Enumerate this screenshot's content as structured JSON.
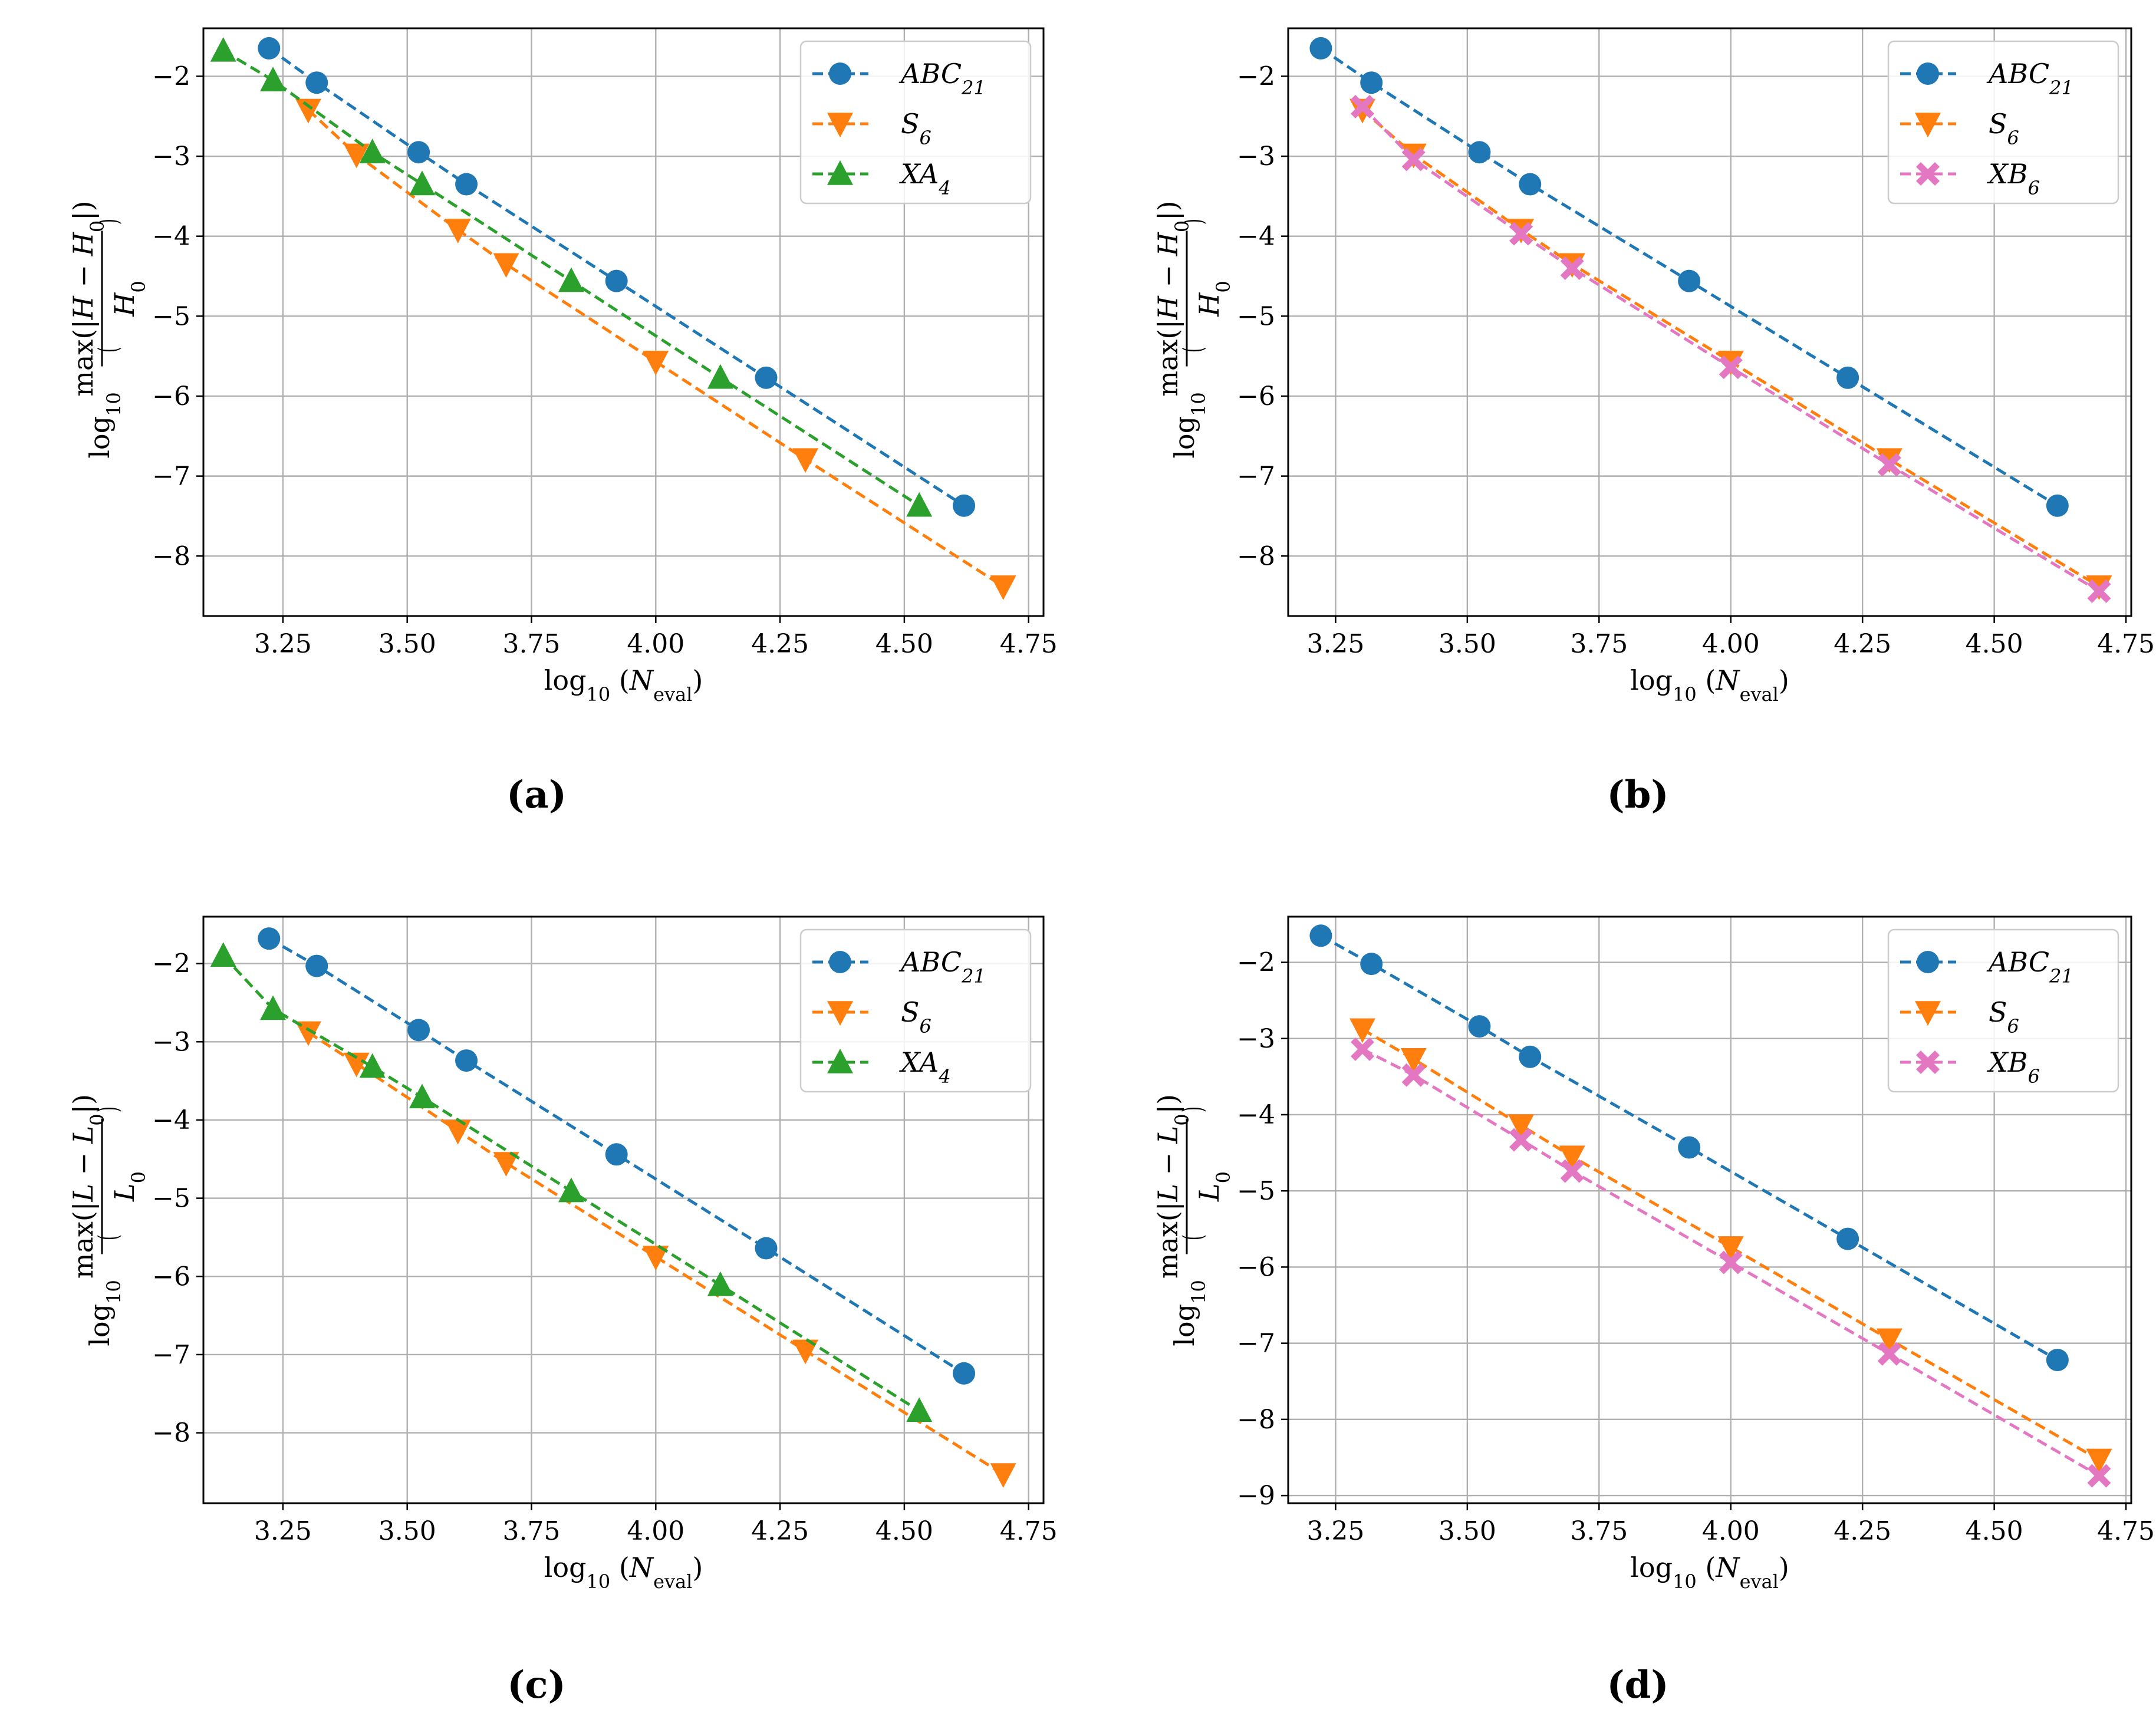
{
  "figure": {
    "panels": [
      "(a)",
      "(b)",
      "(c)",
      "(d)"
    ]
  },
  "colors": {
    "ABC21": "#1f77b4",
    "S6": "#ff7f0e",
    "XA4": "#2ca02c",
    "XB6": "#e377c2"
  },
  "chart_data": [
    {
      "panel": "(a)",
      "type": "line",
      "xlabel": "log10 (N_eval)",
      "ylabel": "log10 (max(|H − H0|) / H0)",
      "xlim": [
        3.09,
        4.78
      ],
      "ylim": [
        -8.75,
        -1.4
      ],
      "xticks": [
        3.25,
        3.5,
        3.75,
        4.0,
        4.25,
        4.5,
        4.75
      ],
      "xtick_labels": [
        "3.25",
        "3.50",
        "3.75",
        "4.00",
        "4.25",
        "4.50",
        "4.75"
      ],
      "yticks": [
        -2,
        -3,
        -4,
        -5,
        -6,
        -7,
        -8
      ],
      "ytick_labels": [
        "−2",
        "−3",
        "−4",
        "−5",
        "−6",
        "−7",
        "−8"
      ],
      "legend_position": "top-right",
      "series": [
        {
          "key": "ABC21",
          "name": "ABC",
          "sub": "21",
          "marker": "circle",
          "x": [
            3.222,
            3.318,
            3.523,
            3.619,
            3.921,
            4.222,
            4.62
          ],
          "y": [
            -1.65,
            -2.08,
            -2.95,
            -3.35,
            -4.56,
            -5.77,
            -7.37
          ]
        },
        {
          "key": "S6",
          "name": "S",
          "sub": "6",
          "marker": "triangle-down",
          "x": [
            3.301,
            3.398,
            3.602,
            3.699,
            4.0,
            4.301,
            4.699
          ],
          "y": [
            -2.42,
            -2.98,
            -3.92,
            -4.35,
            -5.57,
            -6.79,
            -8.38
          ]
        },
        {
          "key": "XA4",
          "name": "XA",
          "sub": "4",
          "marker": "triangle-up",
          "x": [
            3.13,
            3.23,
            3.43,
            3.53,
            3.83,
            4.13,
            4.53
          ],
          "y": [
            -1.68,
            -2.05,
            -2.95,
            -3.35,
            -4.56,
            -5.77,
            -7.37
          ]
        }
      ]
    },
    {
      "panel": "(b)",
      "type": "line",
      "xlabel": "log10 (N_eval)",
      "ylabel": "log10 (max(|H − H0|) / H0)",
      "xlim": [
        3.16,
        4.76
      ],
      "ylim": [
        -8.75,
        -1.4
      ],
      "xticks": [
        3.25,
        3.5,
        3.75,
        4.0,
        4.25,
        4.5,
        4.75
      ],
      "xtick_labels": [
        "3.25",
        "3.50",
        "3.75",
        "4.00",
        "4.25",
        "4.50",
        "4.75"
      ],
      "yticks": [
        -2,
        -3,
        -4,
        -5,
        -6,
        -7,
        -8
      ],
      "ytick_labels": [
        "−2",
        "−3",
        "−4",
        "−5",
        "−6",
        "−7",
        "−8"
      ],
      "legend_position": "top-right",
      "series": [
        {
          "key": "ABC21",
          "name": "ABC",
          "sub": "21",
          "marker": "circle",
          "x": [
            3.222,
            3.318,
            3.523,
            3.619,
            3.921,
            4.222,
            4.62
          ],
          "y": [
            -1.65,
            -2.08,
            -2.95,
            -3.35,
            -4.56,
            -5.77,
            -7.37
          ]
        },
        {
          "key": "S6",
          "name": "S",
          "sub": "6",
          "marker": "triangle-down",
          "x": [
            3.301,
            3.398,
            3.602,
            3.699,
            4.0,
            4.301,
            4.699
          ],
          "y": [
            -2.42,
            -2.98,
            -3.92,
            -4.35,
            -5.57,
            -6.79,
            -8.38
          ]
        },
        {
          "key": "XB6",
          "name": "XB",
          "sub": "6",
          "marker": "x-filled",
          "x": [
            3.301,
            3.398,
            3.602,
            3.699,
            4.0,
            4.301,
            4.699
          ],
          "y": [
            -2.38,
            -3.04,
            -3.97,
            -4.4,
            -5.64,
            -6.86,
            -8.44
          ]
        }
      ]
    },
    {
      "panel": "(c)",
      "type": "line",
      "xlabel": "log10 (N_eval)",
      "ylabel": "log10 (max(|L − L0|) / L0)",
      "xlim": [
        3.09,
        4.78
      ],
      "ylim": [
        -8.9,
        -1.4
      ],
      "xticks": [
        3.25,
        3.5,
        3.75,
        4.0,
        4.25,
        4.5,
        4.75
      ],
      "xtick_labels": [
        "3.25",
        "3.50",
        "3.75",
        "4.00",
        "4.25",
        "4.50",
        "4.75"
      ],
      "yticks": [
        -2,
        -3,
        -4,
        -5,
        -6,
        -7,
        -8
      ],
      "ytick_labels": [
        "−2",
        "−3",
        "−4",
        "−5",
        "−6",
        "−7",
        "−8"
      ],
      "legend_position": "top-right",
      "series": [
        {
          "key": "ABC21",
          "name": "ABC",
          "sub": "21",
          "marker": "circle",
          "x": [
            3.222,
            3.318,
            3.523,
            3.619,
            3.921,
            4.222,
            4.62
          ],
          "y": [
            -1.68,
            -2.03,
            -2.85,
            -3.24,
            -4.44,
            -5.64,
            -7.24
          ]
        },
        {
          "key": "S6",
          "name": "S",
          "sub": "6",
          "marker": "triangle-down",
          "x": [
            3.301,
            3.398,
            3.602,
            3.699,
            4.0,
            4.301,
            4.699
          ],
          "y": [
            -2.88,
            -3.28,
            -4.14,
            -4.55,
            -5.75,
            -6.95,
            -8.53
          ]
        },
        {
          "key": "XA4",
          "name": "XA",
          "sub": "4",
          "marker": "triangle-up",
          "x": [
            3.13,
            3.23,
            3.43,
            3.53,
            3.83,
            4.13,
            4.53
          ],
          "y": [
            -1.9,
            -2.58,
            -3.32,
            -3.71,
            -4.91,
            -6.11,
            -7.72
          ]
        }
      ]
    },
    {
      "panel": "(d)",
      "type": "line",
      "xlabel": "log10 (N_eval)",
      "ylabel": "log10 (max(|L − L0|) / L0)",
      "xlim": [
        3.16,
        4.76
      ],
      "ylim": [
        -9.1,
        -1.4
      ],
      "xticks": [
        3.25,
        3.5,
        3.75,
        4.0,
        4.25,
        4.5,
        4.75
      ],
      "xtick_labels": [
        "3.25",
        "3.50",
        "3.75",
        "4.00",
        "4.25",
        "4.50",
        "4.75"
      ],
      "yticks": [
        -2,
        -3,
        -4,
        -5,
        -6,
        -7,
        -8,
        -9
      ],
      "ytick_labels": [
        "−2",
        "−3",
        "−4",
        "−5",
        "−6",
        "−7",
        "−8",
        "−9"
      ],
      "legend_position": "top-right",
      "series": [
        {
          "key": "ABC21",
          "name": "ABC",
          "sub": "21",
          "marker": "circle",
          "x": [
            3.222,
            3.318,
            3.523,
            3.619,
            3.921,
            4.222,
            4.62
          ],
          "y": [
            -1.65,
            -2.02,
            -2.84,
            -3.24,
            -4.43,
            -5.63,
            -7.22
          ]
        },
        {
          "key": "S6",
          "name": "S",
          "sub": "6",
          "marker": "triangle-down",
          "x": [
            3.301,
            3.398,
            3.602,
            3.699,
            4.0,
            4.301,
            4.699
          ],
          "y": [
            -2.88,
            -3.27,
            -4.14,
            -4.55,
            -5.74,
            -6.95,
            -8.53
          ]
        },
        {
          "key": "XB6",
          "name": "XB",
          "sub": "6",
          "marker": "x-filled",
          "x": [
            3.301,
            3.398,
            3.602,
            3.699,
            4.0,
            4.301,
            4.699
          ],
          "y": [
            -3.14,
            -3.48,
            -4.33,
            -4.74,
            -5.94,
            -7.14,
            -8.74
          ]
        }
      ]
    }
  ]
}
